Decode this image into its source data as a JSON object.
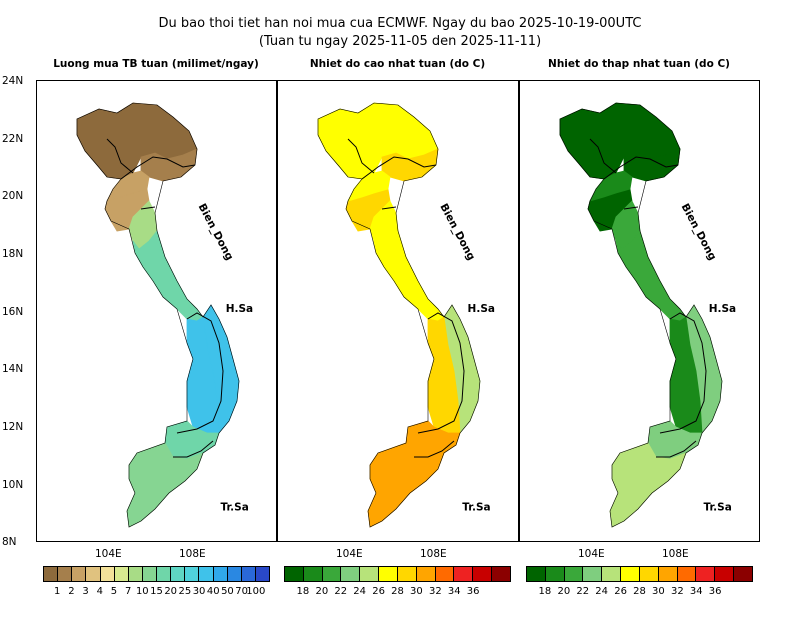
{
  "title_line1": "Du bao thoi tiet han noi mua cua ECMWF. Ngay du bao 2025-10-19-00UTC",
  "title_line2": "(Tuan tu ngay 2025-11-05 den 2025-11-11)",
  "lat_labels": [
    "24N",
    "22N",
    "20N",
    "18N",
    "16N",
    "14N",
    "12N",
    "10N",
    "8N"
  ],
  "lon_labels": [
    "104E",
    "108E"
  ],
  "map_labels": {
    "sea": "Bien_Dong",
    "paracel": "H.Sa",
    "spratly": "Tr.Sa"
  },
  "panels": [
    {
      "title": "Luong mua TB tuan (milimet/ngay)",
      "colors": [
        "#8d6a3c",
        "#a57f4c",
        "#c7a165",
        "#e0c27f",
        "#f3e19a",
        "#d8ea90",
        "#a8dc86",
        "#86d592",
        "#6fd6a9",
        "#5fd6c4",
        "#50d2dc",
        "#3fc2ea",
        "#30a8ea",
        "#2a88e2",
        "#2a68d8",
        "#2948c8"
      ],
      "labels": [
        "1",
        "2",
        "3",
        "4",
        "5",
        "7",
        "10",
        "15",
        "20",
        "25",
        "30",
        "40",
        "50",
        "70",
        "100"
      ],
      "regions": {
        "north": "#8d6a3c",
        "north_east": "#a57f4c",
        "thanh_hoa": "#c7a165",
        "nghe_an": "#c7a165",
        "ha_tinh": "#a8dc86",
        "central": "#6fd6a9",
        "central_coast": "#3fc2ea",
        "highlands": "#3fc2ea",
        "south_east": "#6fd6a9",
        "mekong": "#86d592"
      }
    },
    {
      "title": "Nhiet do cao nhat tuan (do C)",
      "colors": [
        "#006400",
        "#1a8a1a",
        "#3aa83a",
        "#7fce7f",
        "#b7e37a",
        "#ffff00",
        "#ffd700",
        "#ffa500",
        "#ff6a00",
        "#ee2222",
        "#c80000",
        "#8b0000"
      ],
      "labels": [
        "18",
        "20",
        "22",
        "24",
        "26",
        "28",
        "30",
        "32",
        "34",
        "36"
      ],
      "regions": {
        "north": "#ffff00",
        "north_east": "#ffd700",
        "thanh_hoa": "#ffd700",
        "nghe_an": "#ffff00",
        "ha_tinh": "#ffff00",
        "central": "#ffff00",
        "central_coast": "#b7e37a",
        "highlands": "#ffd700",
        "south_east": "#ffa500",
        "mekong": "#ffa500"
      }
    },
    {
      "title": "Nhiet do thap nhat tuan (do C)",
      "colors": [
        "#006400",
        "#1a8a1a",
        "#3aa83a",
        "#7fce7f",
        "#b7e37a",
        "#ffff00",
        "#ffd700",
        "#ffa500",
        "#ff6a00",
        "#ee2222",
        "#c80000",
        "#8b0000"
      ],
      "labels": [
        "18",
        "20",
        "22",
        "24",
        "26",
        "28",
        "30",
        "32",
        "34",
        "36"
      ],
      "regions": {
        "north": "#006400",
        "north_east": "#006400",
        "thanh_hoa": "#006400",
        "nghe_an": "#1a8a1a",
        "ha_tinh": "#3aa83a",
        "central": "#3aa83a",
        "central_coast": "#7fce7f",
        "highlands": "#1a8a1a",
        "south_east": "#7fce7f",
        "mekong": "#b7e37a"
      }
    }
  ]
}
